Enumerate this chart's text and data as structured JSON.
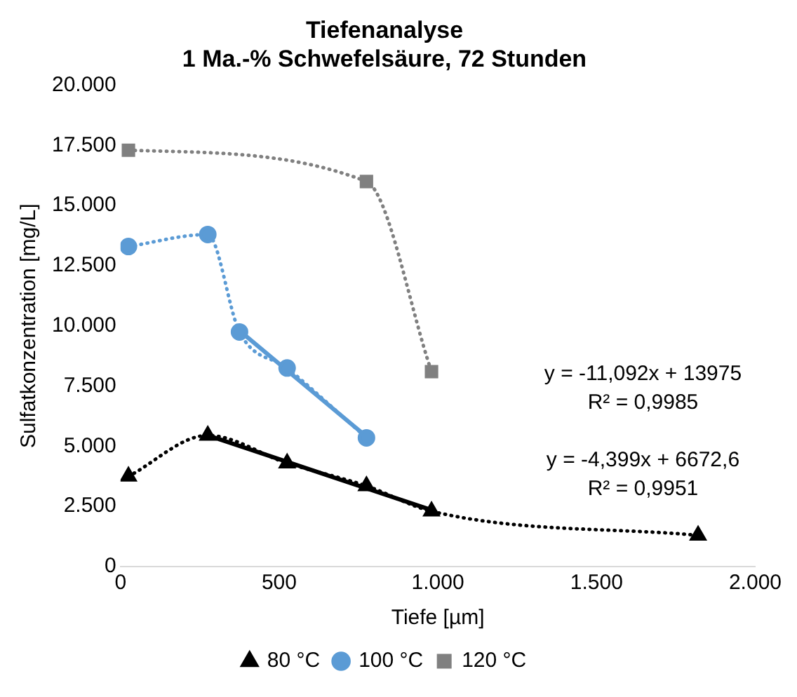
{
  "chart_data": {
    "type": "line",
    "title": "Tiefenanalyse",
    "subtitle": "1 Ma.-% Schwefelsäure, 72 Stunden",
    "xlabel": "Tiefe [µm]",
    "ylabel": "Sulfatkonzentration [mg/L]",
    "xlim": [
      0,
      2000
    ],
    "xticks": [
      0,
      500,
      {
        "value": 1000,
        "label": "1.000"
      },
      {
        "value": 1500,
        "label": "1.500"
      },
      {
        "value": 2000,
        "label": "2.000"
      }
    ],
    "ylim": [
      0,
      20000
    ],
    "yticks": [
      0,
      {
        "value": 2500,
        "label": "2.500"
      },
      {
        "value": 5000,
        "label": "5.000"
      },
      {
        "value": 7500,
        "label": "7.500"
      },
      {
        "value": 10000,
        "label": "10.000"
      },
      {
        "value": 12500,
        "label": "12.500"
      },
      {
        "value": 15000,
        "label": "15.000"
      },
      {
        "value": 17500,
        "label": "17.500"
      },
      {
        "value": 20000,
        "label": "20.000"
      }
    ],
    "grid": false,
    "legend": "bottom",
    "series": [
      {
        "name": "80 °C",
        "color": "#000000",
        "marker": "triangle",
        "line_style": "dotted",
        "x": [
          25,
          275,
          525,
          775,
          980,
          1820
        ],
        "values": [
          3750,
          5450,
          4300,
          3350,
          2300,
          1300
        ]
      },
      {
        "name": "100 °C",
        "color": "#5b9bd5",
        "marker": "circle",
        "line_style": "dotted",
        "x": [
          25,
          275,
          375,
          525,
          775
        ],
        "values": [
          13300,
          13800,
          9750,
          8250,
          5350
        ]
      },
      {
        "name": "120 °C",
        "color": "#808080",
        "marker": "square",
        "line_style": "dotted",
        "x": [
          25,
          775,
          980
        ],
        "values": [
          17300,
          16000,
          8100
        ]
      },
      {
        "color": "#5b9bd5",
        "line_style": "solid",
        "x": [
          375,
          775
        ],
        "values": [
          9800,
          5400
        ]
      },
      {
        "color": "#000000",
        "line_style": "solid",
        "x": [
          275,
          980
        ],
        "values": [
          5450,
          2350
        ]
      }
    ],
    "annotations": [
      "y = -11,092x + 13975",
      "R² = 0,9985",
      "y = -4,399x + 6672,6",
      "R² = 0,9951"
    ]
  }
}
